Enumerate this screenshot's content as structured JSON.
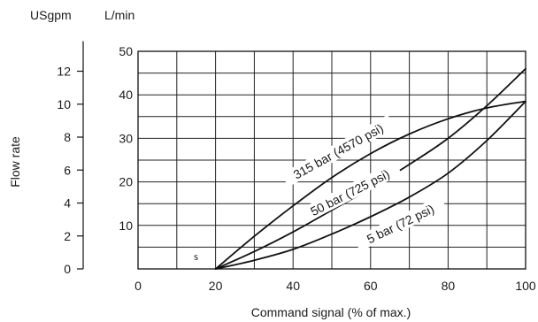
{
  "chart_data": {
    "type": "line",
    "xlabel": "Command signal (% of max.)",
    "ylabel": "Flow rate",
    "xlim": [
      0,
      100
    ],
    "ylim": [
      0,
      50
    ],
    "x_ticks": [
      "0",
      "20",
      "40",
      "60",
      "80",
      "100"
    ],
    "y_ticks_lmin": [
      "10",
      "20",
      "30",
      "40",
      "50"
    ],
    "y_ticks_usgpm": [
      "0",
      "2",
      "4",
      "6",
      "8",
      "10",
      "12"
    ],
    "y_unit_left": "USgpm",
    "y_unit_right": "L/min",
    "grid": true,
    "marker_label": "s",
    "series": [
      {
        "name": "315 bar (4570 psi)",
        "x": [
          20,
          30,
          40,
          50,
          60,
          70,
          80,
          90,
          100
        ],
        "y": [
          0,
          7.5,
          14.5,
          21,
          26.5,
          31,
          34.5,
          37,
          38.5
        ]
      },
      {
        "name": "50 bar (725 psi)",
        "x": [
          20,
          30,
          40,
          50,
          60,
          70,
          80,
          90,
          100
        ],
        "y": [
          0,
          4,
          8.5,
          13.5,
          18.5,
          24,
          30,
          37.5,
          46
        ]
      },
      {
        "name": "5 bar (72 psi)",
        "x": [
          20,
          30,
          40,
          50,
          60,
          70,
          80,
          90,
          100
        ],
        "y": [
          0,
          2,
          4.5,
          8,
          12,
          16.5,
          22,
          29.5,
          38.5
        ]
      }
    ]
  }
}
